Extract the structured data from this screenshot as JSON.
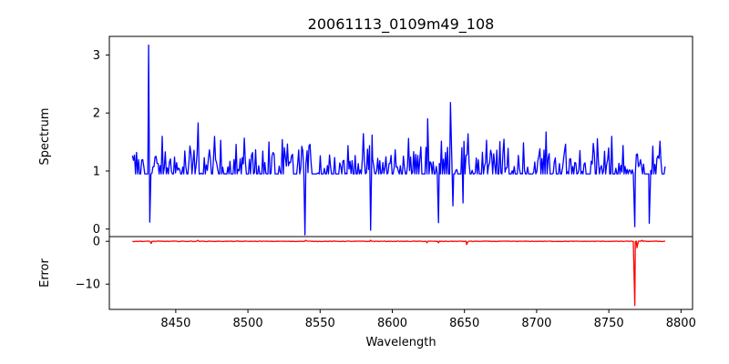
{
  "chart_data": [
    {
      "type": "line",
      "panel": "spectrum",
      "title": "20061113_0109m49_108",
      "xlabel": "",
      "ylabel": "Spectrum",
      "xlim": [
        8404,
        8808
      ],
      "ylim": [
        -0.13,
        3.32
      ],
      "yticks": [
        0,
        1,
        2,
        3
      ],
      "color": "#0000ff",
      "x_range": [
        8420,
        8789
      ],
      "points": 520,
      "base_level": 1.0,
      "noise_sigma": 0.26,
      "spikes": [
        {
          "x": 8431.2,
          "y": 3.17
        },
        {
          "x": 8432.0,
          "y": 0.12
        },
        {
          "x": 8465.5,
          "y": 1.83
        },
        {
          "x": 8539.5,
          "y": -0.1
        },
        {
          "x": 8541.0,
          "y": 1.35
        },
        {
          "x": 8585.0,
          "y": -0.02
        },
        {
          "x": 8586.0,
          "y": 1.62
        },
        {
          "x": 8624.5,
          "y": 1.9
        },
        {
          "x": 8632.0,
          "y": 0.11
        },
        {
          "x": 8640.3,
          "y": 2.18
        },
        {
          "x": 8642.0,
          "y": 0.4
        },
        {
          "x": 8649.0,
          "y": 0.45
        },
        {
          "x": 8768.0,
          "y": 0.04
        },
        {
          "x": 8778.0,
          "y": 0.1
        }
      ]
    },
    {
      "type": "line",
      "panel": "error",
      "title": "",
      "xlabel": "Wavelength",
      "ylabel": "Error",
      "xlim": [
        8404,
        8808
      ],
      "ylim": [
        -15.9,
        1.1
      ],
      "yticks": [
        0,
        -10
      ],
      "xticks": [
        8450,
        8500,
        8550,
        8600,
        8650,
        8700,
        8750,
        8800
      ],
      "color": "#ff0000",
      "x_range": [
        8420,
        8789
      ],
      "points": 520,
      "base_level": 0.0,
      "spikes": [
        {
          "x": 8433.0,
          "y": -0.5
        },
        {
          "x": 8465.5,
          "y": 0.25
        },
        {
          "x": 8540.0,
          "y": 0.25
        },
        {
          "x": 8585.0,
          "y": 0.25
        },
        {
          "x": 8624.0,
          "y": -0.35
        },
        {
          "x": 8632.0,
          "y": -0.35
        },
        {
          "x": 8651.5,
          "y": -0.75
        },
        {
          "x": 8768.0,
          "y": -15.0
        },
        {
          "x": 8769.5,
          "y": -1.5
        },
        {
          "x": 8773.0,
          "y": 0.25
        }
      ]
    }
  ]
}
